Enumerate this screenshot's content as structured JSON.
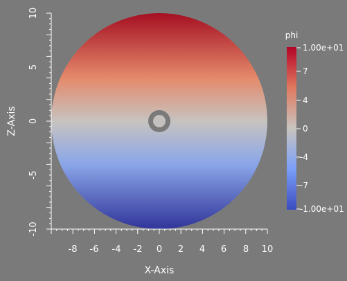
{
  "plot": {
    "x_axis_title": "X-Axis",
    "z_axis_title": "Z-Axis",
    "x_ticks": [
      "-8",
      "-6",
      "-4",
      "-2",
      "0",
      "2",
      "4",
      "6",
      "8",
      "10"
    ],
    "z_ticks": [
      "-10",
      "-5",
      "0",
      "5",
      "10"
    ],
    "disk": {
      "outer_radius": 10,
      "inner_radius_min": 0.6,
      "inner_radius_max": 1.0
    },
    "colors": {
      "background": "#7a7a7a",
      "high": "#b40426",
      "mid": "#dddddd",
      "low": "#3b4cc0",
      "hole": "#7a7a7a"
    }
  },
  "colorbar": {
    "title": "phi",
    "max_label": "1.00e+01",
    "min_label": "-1.00e+01",
    "ticks": [
      "7",
      "4",
      "0",
      "-4",
      "-7"
    ]
  }
}
